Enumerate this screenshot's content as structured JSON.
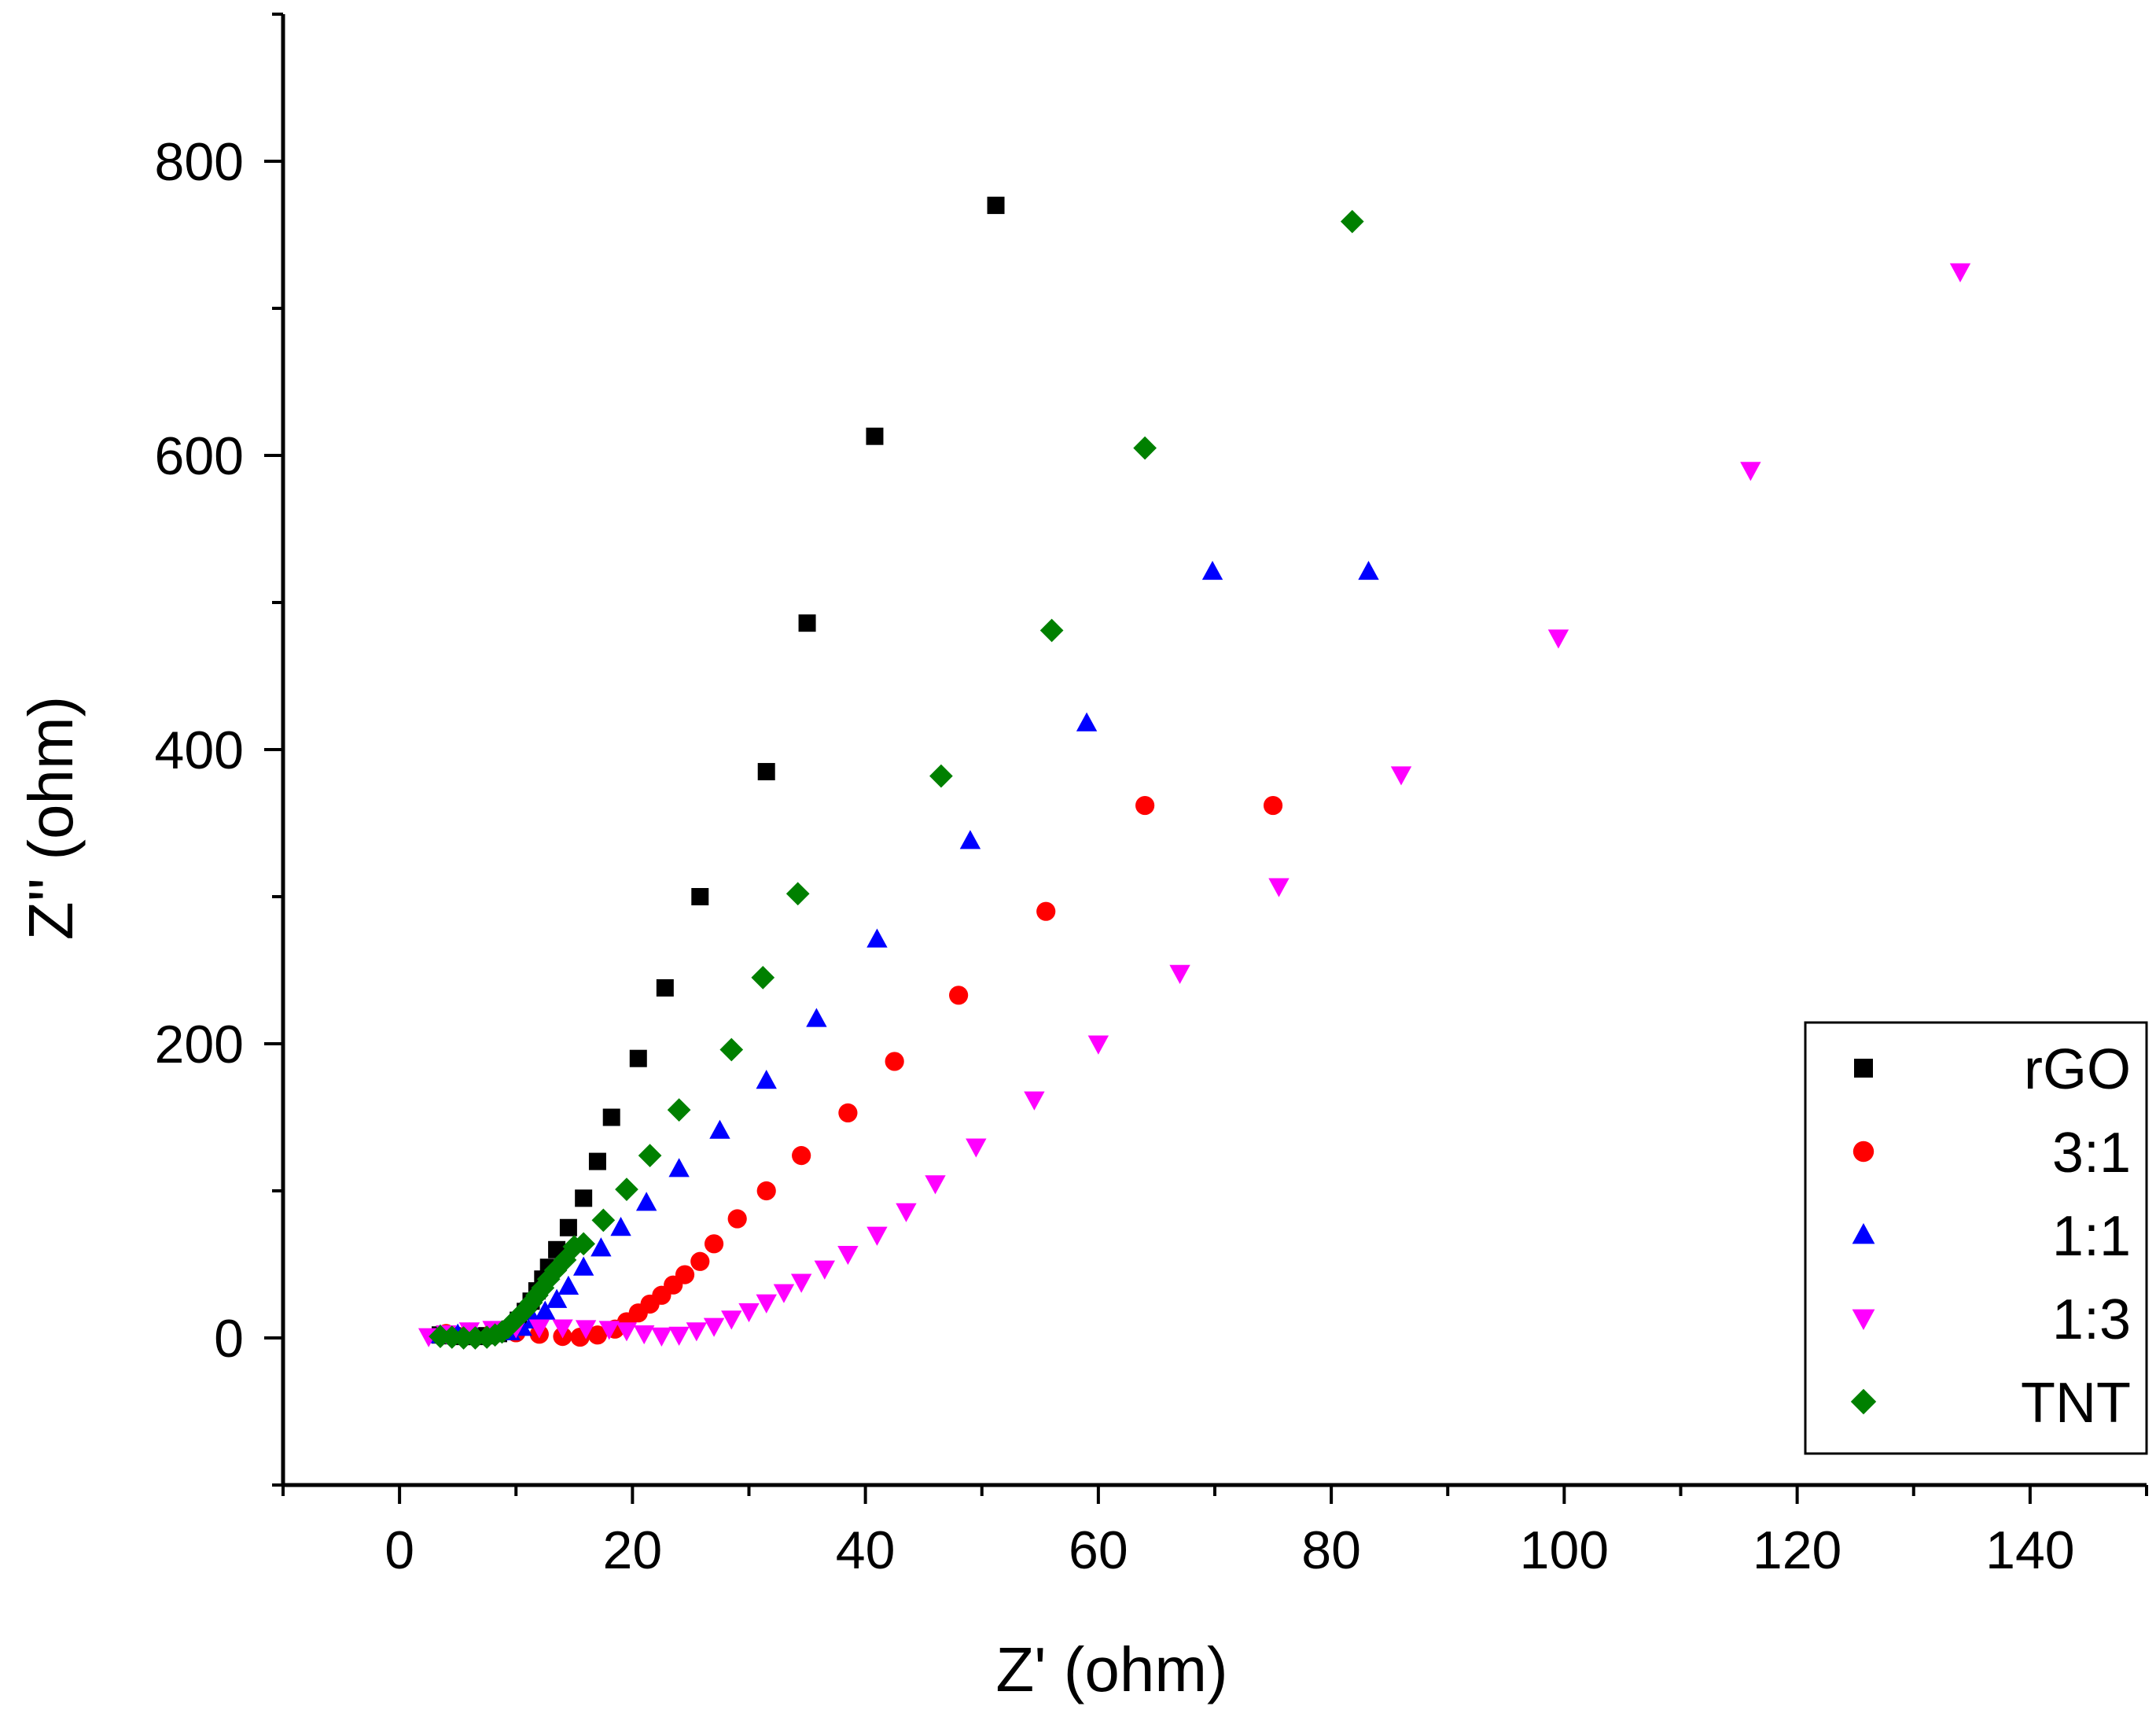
{
  "chart_data": {
    "type": "scatter",
    "title": "",
    "xlabel": "Z' (ohm)",
    "ylabel": "Z'' (ohm)",
    "xlim": [
      -10,
      150
    ],
    "ylim": [
      -100,
      900
    ],
    "xticks": [
      0,
      20,
      40,
      60,
      80,
      100,
      120,
      140
    ],
    "yticks": [
      0,
      200,
      400,
      600,
      800
    ],
    "x_tick_labels": [
      "0",
      "20",
      "40",
      "60",
      "80",
      "100",
      "120",
      "140"
    ],
    "y_tick_labels": [
      "0",
      "200",
      "400",
      "600",
      "800"
    ],
    "grid": false,
    "legend_position": "bottom-right",
    "series": [
      {
        "name": "rGO",
        "marker": "square",
        "color": "#000000",
        "points": [
          [
            3.5,
            2
          ],
          [
            4.5,
            1.5
          ],
          [
            5.5,
            1
          ],
          [
            6.5,
            1
          ],
          [
            7.5,
            1.5
          ],
          [
            8.5,
            3
          ],
          [
            9.5,
            6
          ],
          [
            10.2,
            12
          ],
          [
            10.8,
            18
          ],
          [
            11.3,
            25
          ],
          [
            11.8,
            32
          ],
          [
            12.3,
            40
          ],
          [
            12.8,
            48
          ],
          [
            13.5,
            60
          ],
          [
            14.5,
            75
          ],
          [
            15.8,
            95
          ],
          [
            17,
            120
          ],
          [
            18.2,
            150
          ],
          [
            20.5,
            190
          ],
          [
            22.8,
            238
          ],
          [
            25.8,
            300
          ],
          [
            31.5,
            385
          ],
          [
            35,
            486
          ],
          [
            40.8,
            613
          ],
          [
            51.2,
            770
          ]
        ]
      },
      {
        "name": "3:1",
        "marker": "circle",
        "color": "#ff0000",
        "points": [
          [
            4,
            3
          ],
          [
            6,
            4
          ],
          [
            8,
            4
          ],
          [
            10,
            3.5
          ],
          [
            12,
            2.5
          ],
          [
            14,
            1
          ],
          [
            15.5,
            0.5
          ],
          [
            17,
            2
          ],
          [
            18.5,
            6
          ],
          [
            19.5,
            11
          ],
          [
            20.5,
            17
          ],
          [
            21.5,
            23
          ],
          [
            22.5,
            29
          ],
          [
            23.5,
            36
          ],
          [
            24.5,
            43
          ],
          [
            25.8,
            52
          ],
          [
            27,
            64
          ],
          [
            29,
            81
          ],
          [
            31.5,
            100
          ],
          [
            34.5,
            124
          ],
          [
            38.5,
            153
          ],
          [
            42.5,
            188
          ],
          [
            48,
            233
          ],
          [
            55.5,
            290
          ],
          [
            64,
            362
          ],
          [
            75,
            362
          ]
        ]
      },
      {
        "name": "1:1",
        "marker": "triangle-up",
        "color": "#0000ff",
        "points": [
          [
            3.5,
            2
          ],
          [
            5,
            2.5
          ],
          [
            6.5,
            2.5
          ],
          [
            8,
            3
          ],
          [
            9.5,
            4
          ],
          [
            10.5,
            7
          ],
          [
            11.5,
            12
          ],
          [
            12.5,
            18
          ],
          [
            13.5,
            26
          ],
          [
            14.5,
            35
          ],
          [
            15.8,
            48
          ],
          [
            17.3,
            61
          ],
          [
            19,
            75
          ],
          [
            21.2,
            92
          ],
          [
            24,
            115
          ],
          [
            27.5,
            141
          ],
          [
            31.5,
            175
          ],
          [
            35.8,
            217
          ],
          [
            41,
            271
          ],
          [
            49,
            338
          ],
          [
            59,
            418
          ],
          [
            69.8,
            521
          ],
          [
            83.2,
            521
          ]
        ]
      },
      {
        "name": "1:3",
        "marker": "triangle-down",
        "color": "#ff00ff",
        "points": [
          [
            2.5,
            1
          ],
          [
            4,
            3
          ],
          [
            6,
            5
          ],
          [
            8,
            6
          ],
          [
            10,
            7
          ],
          [
            12,
            7
          ],
          [
            14,
            7
          ],
          [
            16,
            6.5
          ],
          [
            18,
            6
          ],
          [
            19.5,
            5
          ],
          [
            21,
            3
          ],
          [
            22.5,
            1.5
          ],
          [
            24,
            2
          ],
          [
            25.5,
            5
          ],
          [
            27,
            8
          ],
          [
            28.5,
            13
          ],
          [
            30,
            18
          ],
          [
            31.5,
            24
          ],
          [
            33,
            31
          ],
          [
            34.5,
            38
          ],
          [
            36.5,
            47
          ],
          [
            38.5,
            57
          ],
          [
            41,
            70
          ],
          [
            43.5,
            86
          ],
          [
            46,
            105
          ],
          [
            49.5,
            130
          ],
          [
            54.5,
            162
          ],
          [
            60,
            200
          ],
          [
            67,
            248
          ],
          [
            75.5,
            307
          ],
          [
            86,
            383
          ],
          [
            99.5,
            476
          ],
          [
            116,
            590
          ],
          [
            134,
            725
          ]
        ]
      },
      {
        "name": "TNT",
        "marker": "diamond",
        "color": "#008000",
        "points": [
          [
            3.5,
            1
          ],
          [
            4.5,
            0.5
          ],
          [
            5.5,
            0
          ],
          [
            6.5,
            0
          ],
          [
            7.5,
            0.5
          ],
          [
            8.2,
            2
          ],
          [
            8.8,
            4
          ],
          [
            9.3,
            7
          ],
          [
            9.8,
            11
          ],
          [
            10.3,
            15
          ],
          [
            10.8,
            19
          ],
          [
            11.3,
            24
          ],
          [
            11.8,
            29
          ],
          [
            12.3,
            34
          ],
          [
            12.8,
            40
          ],
          [
            13.4,
            46
          ],
          [
            14.2,
            53
          ],
          [
            15,
            62
          ],
          [
            15.8,
            64
          ],
          [
            17.5,
            80
          ],
          [
            19.5,
            101
          ],
          [
            21.5,
            124
          ],
          [
            24,
            155
          ],
          [
            28.5,
            196
          ],
          [
            31.2,
            245
          ],
          [
            34.2,
            302
          ],
          [
            46.5,
            382
          ],
          [
            56,
            481
          ],
          [
            64,
            605
          ],
          [
            81.8,
            759
          ]
        ]
      }
    ]
  }
}
